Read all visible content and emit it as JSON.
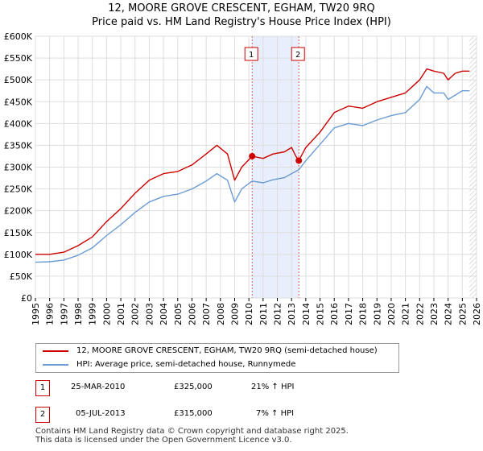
{
  "title": {
    "line1": "12, MOORE GROVE CRESCENT, EGHAM, TW20 9RQ",
    "line2": "Price paid vs. HM Land Registry's House Price Index (HPI)"
  },
  "colors": {
    "property": "#cc0000",
    "hpi": "#6a9bd4",
    "grid": "#dddddd",
    "shade": "#e8eefb",
    "marker_line": "#dd6666"
  },
  "chart_data": {
    "type": "line",
    "title": "12, MOORE GROVE CRESCENT, EGHAM, TW20 9RQ",
    "subtitle": "Price paid vs. HM Land Registry's House Price Index (HPI)",
    "xlabel": "",
    "ylabel": "",
    "xlim": [
      1995,
      2026
    ],
    "ylim": [
      0,
      600000
    ],
    "x_ticks": [
      1995,
      1996,
      1997,
      1998,
      1999,
      2000,
      2001,
      2002,
      2003,
      2004,
      2005,
      2006,
      2007,
      2008,
      2009,
      2010,
      2011,
      2012,
      2013,
      2014,
      2015,
      2016,
      2017,
      2018,
      2019,
      2020,
      2021,
      2022,
      2023,
      2024,
      2025,
      2026
    ],
    "y_ticks": [
      0,
      50000,
      100000,
      150000,
      200000,
      250000,
      300000,
      350000,
      400000,
      450000,
      500000,
      550000,
      600000
    ],
    "y_tick_labels": [
      "£0",
      "£50K",
      "£100K",
      "£150K",
      "£200K",
      "£250K",
      "£300K",
      "£350K",
      "£400K",
      "£450K",
      "£500K",
      "£550K",
      "£600K"
    ],
    "grid": true,
    "shaded_region": [
      2010.23,
      2013.51
    ],
    "hatched_from": 2025.5,
    "series": [
      {
        "name": "12, MOORE GROVE CRESCENT, EGHAM, TW20 9RQ (semi-detached house)",
        "x": [
          1995,
          1996,
          1997,
          1998,
          1999,
          2000,
          2001,
          2002,
          2003,
          2004,
          2005,
          2006,
          2007,
          2007.75,
          2008.5,
          2009,
          2009.5,
          2010.23,
          2011,
          2011.7,
          2012.5,
          2013,
          2013.3,
          2013.51,
          2014,
          2015,
          2016,
          2017,
          2018,
          2019,
          2020,
          2021,
          2022,
          2022.5,
          2023,
          2023.7,
          2024,
          2024.5,
          2025,
          2025.5
        ],
        "values": [
          100000,
          100000,
          105000,
          120000,
          140000,
          175000,
          205000,
          240000,
          270000,
          285000,
          290000,
          305000,
          330000,
          350000,
          330000,
          270000,
          300000,
          325000,
          320000,
          330000,
          335000,
          345000,
          325000,
          315000,
          345000,
          380000,
          425000,
          440000,
          435000,
          450000,
          460000,
          470000,
          500000,
          525000,
          520000,
          515000,
          500000,
          515000,
          520000,
          520000
        ]
      },
      {
        "name": "HPI: Average price, semi-detached house, Runnymede",
        "x": [
          1995,
          1996,
          1997,
          1998,
          1999,
          2000,
          2001,
          2002,
          2003,
          2004,
          2005,
          2006,
          2007,
          2007.75,
          2008.5,
          2009,
          2009.5,
          2010.23,
          2011,
          2011.7,
          2012.5,
          2013,
          2013.51,
          2014,
          2015,
          2016,
          2017,
          2018,
          2019,
          2020,
          2021,
          2022,
          2022.5,
          2023,
          2023.7,
          2024,
          2024.5,
          2025,
          2025.5
        ],
        "values": [
          82000,
          83000,
          87000,
          98000,
          115000,
          143000,
          168000,
          196000,
          220000,
          233000,
          238000,
          250000,
          268000,
          285000,
          270000,
          220000,
          250000,
          268000,
          264000,
          271000,
          276000,
          285000,
          294000,
          315000,
          352000,
          390000,
          400000,
          395000,
          408000,
          418000,
          425000,
          455000,
          485000,
          470000,
          470000,
          455000,
          465000,
          475000,
          475000
        ]
      }
    ],
    "sales": [
      {
        "label": "1",
        "x": 2010.23,
        "value": 325000
      },
      {
        "label": "2",
        "x": 2013.51,
        "value": 315000
      }
    ]
  },
  "legend": {
    "property_label": "12, MOORE GROVE CRESCENT, EGHAM, TW20 9RQ (semi-detached house)",
    "hpi_label": "HPI: Average price, semi-detached house, Runnymede"
  },
  "transactions": [
    {
      "num": "1",
      "date": "25-MAR-2010",
      "price": "£325,000",
      "hpi": "21% ↑ HPI"
    },
    {
      "num": "2",
      "date": "05-JUL-2013",
      "price": "£315,000",
      "hpi": "7% ↑ HPI"
    }
  ],
  "footer": {
    "line1": "Contains HM Land Registry data © Crown copyright and database right 2025.",
    "line2": "This data is licensed under the Open Government Licence v3.0."
  }
}
